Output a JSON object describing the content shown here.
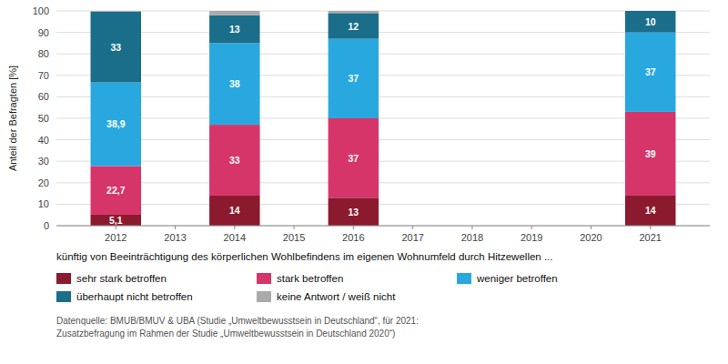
{
  "chart_data": {
    "type": "bar",
    "stacked": true,
    "subtitle": "künftig von Beeinträchtigung des körperlichen Wohlbefindens im eigenen Wohnumfeld durch Hitzewellen ...",
    "y_label": "Anteil der Befragten [%]",
    "annotations": [
      "Datenquelle: BMUB/BMUV & UBA (Studie „Umweltbewusstsein in Deutschland“, für 2021:",
      "Zusatzbefragung im Rahmen der Studie „Umweltbewusstsein in Deutschland 2020“)"
    ],
    "x": [
      2012,
      2014,
      2016,
      2021
    ],
    "xlim": [
      2011.0,
      2022.0
    ],
    "xticks": [
      2012,
      2013,
      2014,
      2015,
      2016,
      2017,
      2018,
      2019,
      2020,
      2021
    ],
    "ylim": [
      0,
      100
    ],
    "yticks": [
      0,
      10,
      20,
      30,
      40,
      50,
      60,
      70,
      80,
      90,
      100
    ],
    "grid": true,
    "legend": "bottom",
    "series": [
      {
        "name": "sehr stark betroffen",
        "color": "#8B1A2E",
        "values": [
          5.1,
          14,
          13,
          14
        ],
        "data_labels": true,
        "value_labels": [
          "5,1",
          "14",
          "13",
          "14"
        ]
      },
      {
        "name": "stark betroffen",
        "color": "#D63569",
        "values": [
          22.7,
          33,
          37,
          39
        ],
        "data_labels": true,
        "value_labels": [
          "22,7",
          "33",
          "37",
          "39"
        ]
      },
      {
        "name": "weniger betroffen",
        "color": "#29A8E0",
        "values": [
          38.9,
          38,
          37,
          37
        ],
        "data_labels": true,
        "value_labels": [
          "38,9",
          "38",
          "37",
          "37"
        ]
      },
      {
        "name": "überhaupt nicht betroffen",
        "color": "#1A6E8A",
        "values": [
          33,
          13,
          12,
          10
        ],
        "data_labels": true,
        "value_labels": [
          "33",
          "13",
          "12",
          "10"
        ]
      },
      {
        "name": "keine Antwort / weiß nicht",
        "color": "#AAAAAA",
        "values": [
          0.3,
          2,
          1,
          0
        ],
        "data_labels": false
      }
    ]
  }
}
